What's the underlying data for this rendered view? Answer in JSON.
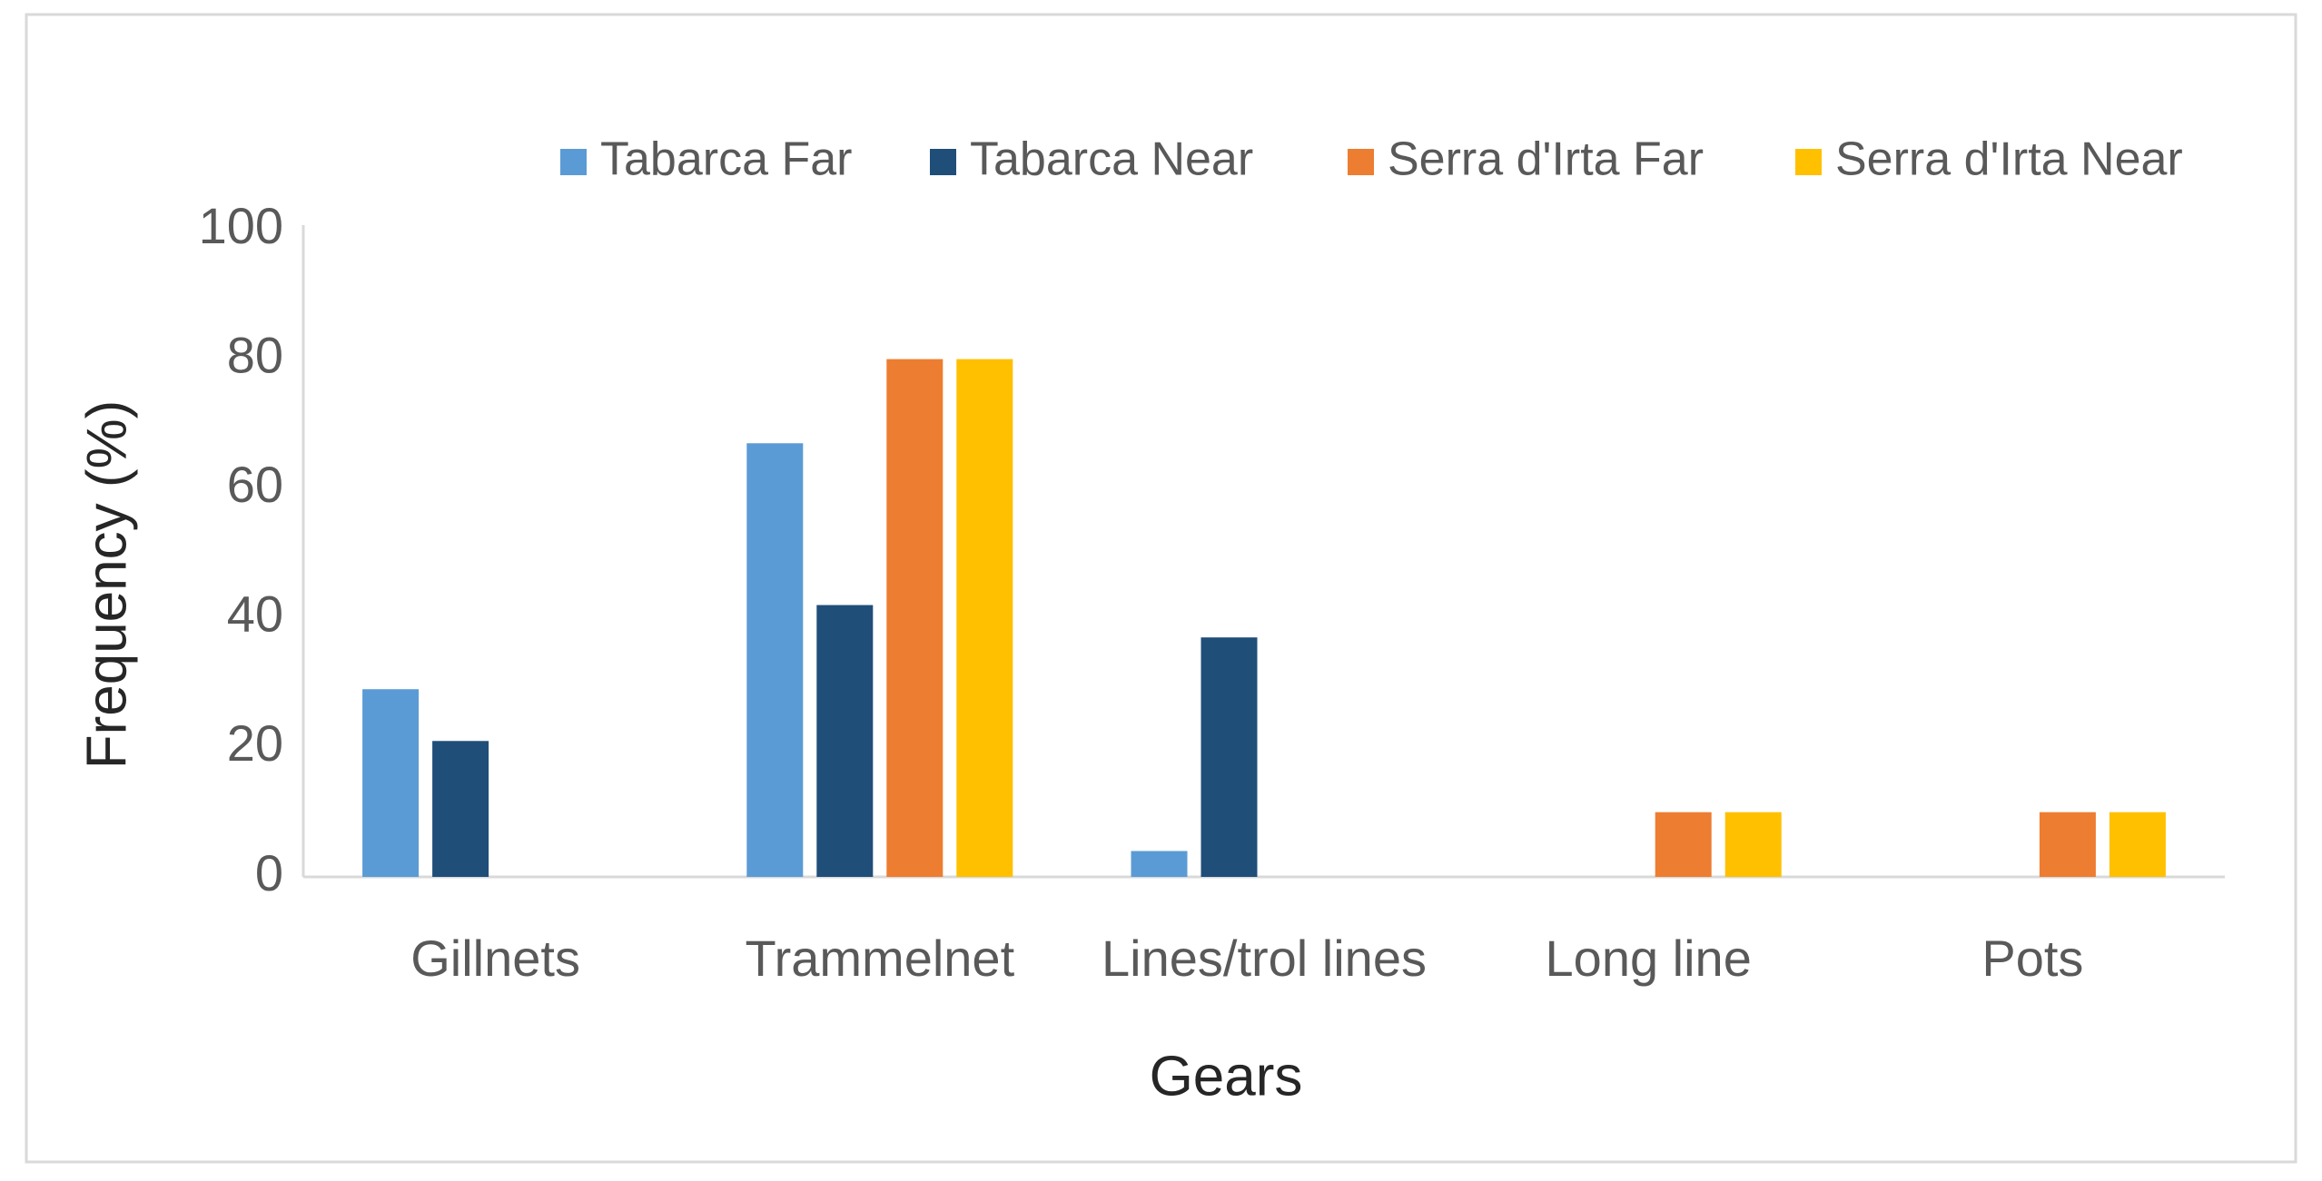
{
  "chart_data": {
    "type": "bar",
    "xlabel": "Gears",
    "ylabel": "Frequency (%)",
    "categories": [
      "Gillnets",
      "Trammelnet",
      "Lines/trol lines",
      "Long line",
      "Pots"
    ],
    "series": [
      {
        "name": "Tabarca Far",
        "color": "#5b9bd5",
        "values": [
          29,
          67,
          4,
          null,
          null
        ]
      },
      {
        "name": "Tabarca Near",
        "color": "#1f4e79",
        "values": [
          21,
          42,
          37,
          null,
          null
        ]
      },
      {
        "name": "Serra d'Irta Far",
        "color": "#ed7d31",
        "values": [
          null,
          80,
          null,
          10,
          10
        ]
      },
      {
        "name": "Serra d'Irta Near",
        "color": "#ffc000",
        "values": [
          null,
          80,
          null,
          10,
          10
        ]
      }
    ],
    "ylim": [
      0,
      100
    ],
    "yticks": [
      0,
      20,
      40,
      60,
      80,
      100
    ],
    "grid": false,
    "legend": "top"
  }
}
